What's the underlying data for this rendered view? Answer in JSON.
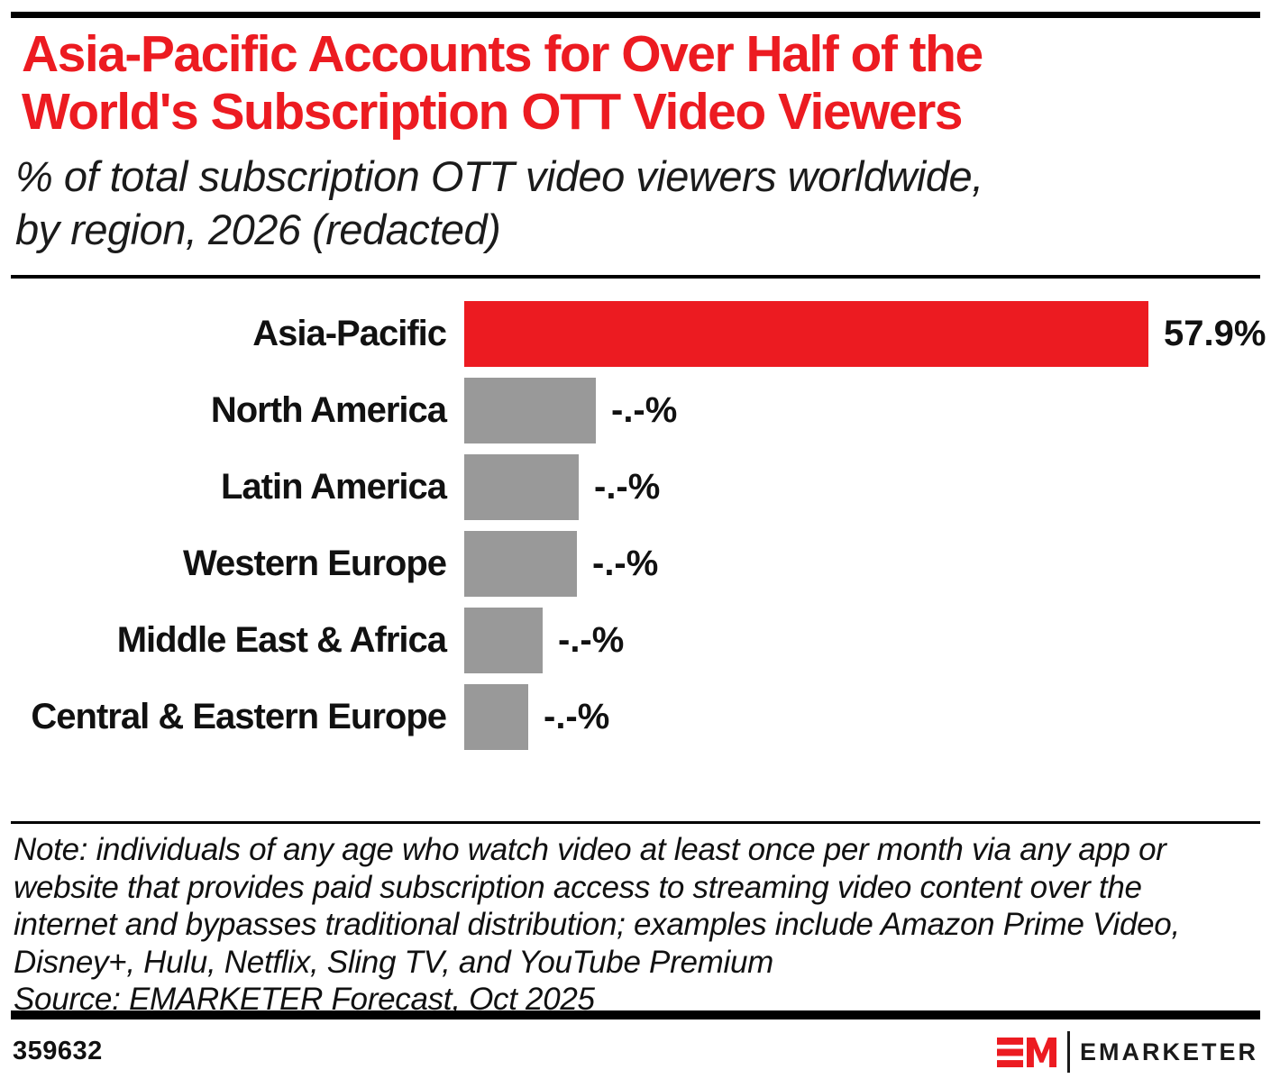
{
  "header": {
    "title_lines": [
      "Asia-Pacific Accounts for Over Half of the",
      "World's Subscription OTT Video Viewers"
    ],
    "title_color": "#EC1B21",
    "subtitle_lines": [
      "% of total subscription OTT video viewers worldwide,",
      "by region, 2026 (redacted)"
    ]
  },
  "chart_data": {
    "type": "bar",
    "orientation": "horizontal",
    "title": "Asia-Pacific Accounts for Over Half of the World's Subscription OTT Video Viewers",
    "subtitle": "% of total subscription OTT video viewers worldwide, by region, 2026 (redacted)",
    "categories": [
      "Asia-Pacific",
      "North America",
      "Latin America",
      "Western Europe",
      "Middle East & Africa",
      "Central & Eastern Europe"
    ],
    "displayed_value_labels": [
      "57.9%",
      "-.-%",
      "-.-%",
      "-.-%",
      "-.-%",
      "-.-%"
    ],
    "values_estimated_pct": [
      57.9,
      11.1,
      9.7,
      9.5,
      6.6,
      5.4
    ],
    "values_redacted": [
      false,
      true,
      true,
      true,
      true,
      true
    ],
    "bar_colors": [
      "#EC1B21",
      "#999999",
      "#999999",
      "#999999",
      "#999999",
      "#999999"
    ],
    "xlim": [
      0,
      60
    ],
    "grid": false,
    "legend": false
  },
  "footnote": {
    "note_lines": [
      "Note: individuals of any age who watch video at least once per month via any app or",
      "website that provides paid subscription access to streaming video content over the",
      "internet and bypasses traditional distribution; examples include Amazon Prime Video,",
      "Disney+, Hulu, Netflix, Sling TV, and YouTube Premium",
      "Source: EMARKETER Forecast, Oct 2025"
    ]
  },
  "footer": {
    "chart_id": "359632",
    "logo_monogram": "EM",
    "logo_wordmark": "EMARKETER",
    "logo_red": "#EC1B21",
    "logo_black": "#1a1a1a"
  }
}
